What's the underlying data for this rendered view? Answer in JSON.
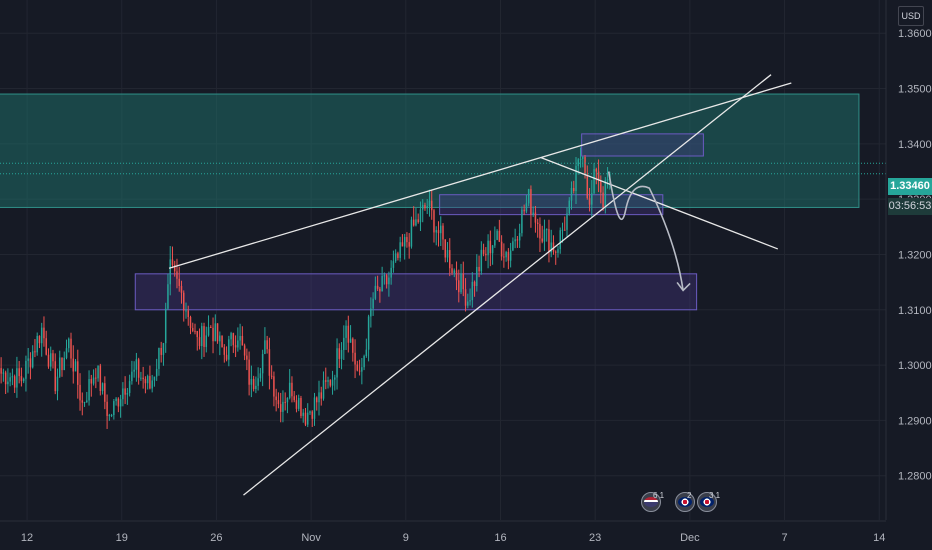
{
  "currency": "USD",
  "last_price_label": "1.33460",
  "countdown_label": "03:56:53",
  "colors": {
    "background": "#161a25",
    "up": "#26a69a",
    "down": "#ef5350",
    "zone_teal": "#1f6b66",
    "zone_purple": "#4a3a8a",
    "last_price_tag": "#26a69a",
    "countdown_tag": "#1e3b3a"
  },
  "events": [
    {
      "name": "us-event",
      "count": "6 1"
    },
    {
      "name": "uk-event-1",
      "count": "2"
    },
    {
      "name": "uk-event-2",
      "count": "3 1"
    }
  ],
  "chart_data": {
    "type": "candlestick",
    "y_axis": {
      "range": [
        1.272,
        1.366
      ],
      "ticks": [
        "1.36000",
        "1.35000",
        "1.34000",
        "1.33000",
        "1.32000",
        "1.31000",
        "1.30000",
        "1.29000",
        "1.28000"
      ],
      "tick_values": [
        1.36,
        1.35,
        1.34,
        1.33,
        1.32,
        1.31,
        1.3,
        1.29,
        1.28
      ]
    },
    "x_axis": {
      "range": [
        0,
        131
      ],
      "ticks": [
        "12",
        "19",
        "26",
        "Nov",
        "9",
        "16",
        "23",
        "Dec",
        "7",
        "14"
      ],
      "tick_positions": [
        4,
        18,
        32,
        46,
        60,
        74,
        88,
        102,
        116,
        130
      ]
    },
    "anchors": [
      [
        0,
        1.2985
      ],
      [
        3,
        1.2975
      ],
      [
        6,
        1.3065
      ],
      [
        8,
        1.297
      ],
      [
        10,
        1.304
      ],
      [
        12,
        1.293
      ],
      [
        14,
        1.2995
      ],
      [
        16,
        1.2905
      ],
      [
        18,
        1.296
      ],
      [
        20,
        1.299
      ],
      [
        22,
        1.296
      ],
      [
        24,
        1.305
      ],
      [
        25,
        1.317
      ],
      [
        27,
        1.312
      ],
      [
        29,
        1.304
      ],
      [
        31,
        1.307
      ],
      [
        33,
        1.302
      ],
      [
        35,
        1.306
      ],
      [
        37,
        1.296
      ],
      [
        39,
        1.303
      ],
      [
        41,
        1.293
      ],
      [
        43,
        1.296
      ],
      [
        45,
        1.291
      ],
      [
        47,
        1.294
      ],
      [
        49,
        1.298
      ],
      [
        51,
        1.308
      ],
      [
        53,
        1.297
      ],
      [
        55,
        1.312
      ],
      [
        57,
        1.315
      ],
      [
        59,
        1.32
      ],
      [
        61,
        1.325
      ],
      [
        63,
        1.329
      ],
      [
        65,
        1.323
      ],
      [
        67,
        1.317
      ],
      [
        69,
        1.312
      ],
      [
        71,
        1.319
      ],
      [
        73,
        1.323
      ],
      [
        75,
        1.32
      ],
      [
        77,
        1.327
      ],
      [
        78,
        1.33
      ],
      [
        80,
        1.324
      ],
      [
        82,
        1.321
      ],
      [
        84,
        1.328
      ],
      [
        85,
        1.334
      ],
      [
        86,
        1.3395
      ],
      [
        87,
        1.328
      ],
      [
        88,
        1.336
      ],
      [
        89,
        1.33
      ],
      [
        90,
        1.3346
      ]
    ],
    "zones": [
      {
        "name": "resistance-zone",
        "x": [
          -1,
          127
        ],
        "y": [
          1.3285,
          1.349
        ],
        "color": "teal"
      },
      {
        "name": "supply-box",
        "x": [
          86,
          104
        ],
        "y": [
          1.3378,
          1.3418
        ],
        "color": "purple"
      },
      {
        "name": "mid-box",
        "x": [
          65,
          98
        ],
        "y": [
          1.3272,
          1.3308
        ],
        "color": "purple"
      },
      {
        "name": "demand-box",
        "x": [
          20,
          103
        ],
        "y": [
          1.31,
          1.3165
        ],
        "color": "purple"
      }
    ],
    "trend_lines": [
      {
        "name": "wedge-upper-line",
        "from": [
          25,
          1.3175
        ],
        "to": [
          117,
          1.351
        ]
      },
      {
        "name": "wedge-lower-line",
        "from": [
          36,
          1.2765
        ],
        "to": [
          114,
          1.3525
        ]
      },
      {
        "name": "descending-line",
        "from": [
          80,
          1.3375
        ],
        "to": [
          115,
          1.321
        ]
      }
    ],
    "dotted_levels": [
      1.3346,
      1.3365
    ],
    "projection_path": [
      [
        90,
        1.335
      ],
      [
        92.5,
        1.328
      ],
      [
        96,
        1.332
      ],
      [
        100,
        1.322
      ],
      [
        101,
        1.3135
      ]
    ]
  }
}
